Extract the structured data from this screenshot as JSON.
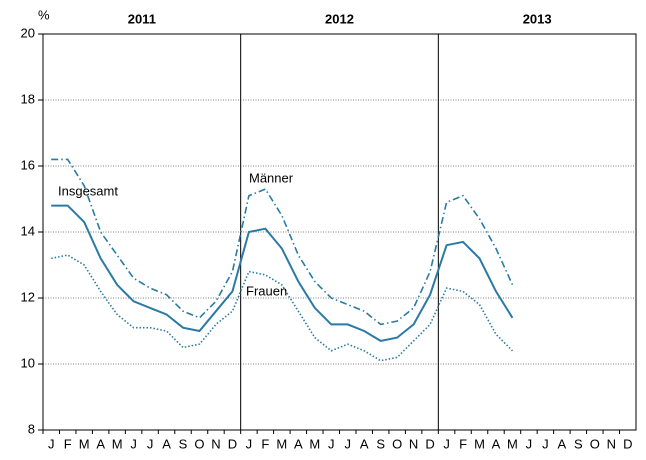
{
  "chart_data": {
    "type": "line",
    "y_unit": "%",
    "year_labels": [
      "2011",
      "2012",
      "2013"
    ],
    "categories": [
      "J",
      "F",
      "M",
      "A",
      "M",
      "J",
      "J",
      "A",
      "S",
      "O",
      "N",
      "D",
      "J",
      "F",
      "M",
      "A",
      "M",
      "J",
      "J",
      "A",
      "S",
      "O",
      "N",
      "D",
      "J",
      "F",
      "M",
      "A",
      "M",
      "J",
      "J",
      "A",
      "S",
      "O",
      "N",
      "D"
    ],
    "series": [
      {
        "name": "Insgesamt",
        "color": "#2a7aa5",
        "dash": "solid",
        "values": [
          14.8,
          14.8,
          14.3,
          13.2,
          12.4,
          11.9,
          11.7,
          11.5,
          11.1,
          11.0,
          11.6,
          12.2,
          14.0,
          14.1,
          13.5,
          12.5,
          11.7,
          11.2,
          11.2,
          11.0,
          10.7,
          10.8,
          11.2,
          12.1,
          13.6,
          13.7,
          13.2,
          12.2,
          11.4,
          null,
          null,
          null,
          null,
          null,
          null,
          null
        ]
      },
      {
        "name": "Männer",
        "color": "#2a7aa5",
        "dash": "dashdot",
        "values": [
          16.2,
          16.2,
          15.4,
          14.0,
          13.3,
          12.6,
          12.3,
          12.1,
          11.6,
          11.4,
          11.9,
          12.8,
          15.1,
          15.3,
          14.5,
          13.3,
          12.5,
          12.0,
          11.8,
          11.6,
          11.2,
          11.3,
          11.7,
          12.8,
          14.9,
          15.1,
          14.4,
          13.5,
          12.4,
          null,
          null,
          null,
          null,
          null,
          null,
          null
        ]
      },
      {
        "name": "Frauen",
        "color": "#2a7aa5",
        "dash": "dotted",
        "values": [
          13.2,
          13.3,
          13.0,
          12.2,
          11.5,
          11.1,
          11.1,
          11.0,
          10.5,
          10.6,
          11.2,
          11.6,
          12.8,
          12.7,
          12.4,
          11.6,
          10.8,
          10.4,
          10.6,
          10.4,
          10.1,
          10.2,
          10.7,
          11.2,
          12.3,
          12.2,
          11.8,
          10.9,
          10.4,
          null,
          null,
          null,
          null,
          null,
          null,
          null
        ]
      }
    ],
    "ylim": [
      8,
      20
    ],
    "yticks": [
      8,
      10,
      12,
      14,
      16,
      18,
      20
    ],
    "grid": true
  }
}
